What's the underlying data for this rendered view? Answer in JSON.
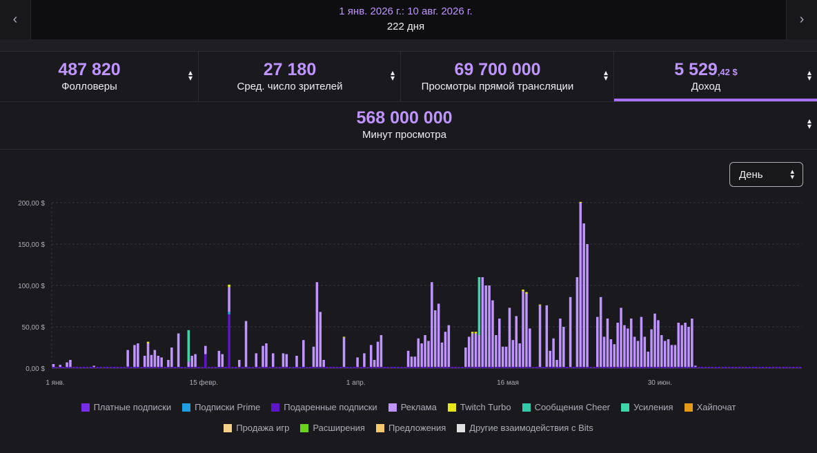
{
  "header": {
    "date_range": "1 янв. 2026 г.: 10 авг. 2026 г.",
    "days": "222 дня",
    "prev_icon": "chevron-left-icon",
    "next_icon": "chevron-right-icon"
  },
  "metrics": [
    {
      "value": "487 820",
      "label": "Фолловеры"
    },
    {
      "value": "27 180",
      "label": "Сред. число зрителей"
    },
    {
      "value": "69 700 000",
      "label": "Просмотры прямой трансляции"
    },
    {
      "value": "5 529",
      "value_small": ",42 $",
      "label": "Доход",
      "active": true
    }
  ],
  "metric_wide": {
    "value": "568 000 000",
    "label": "Минут просмотра"
  },
  "period": {
    "selected": "День"
  },
  "chart_data": {
    "type": "bar",
    "stacked": true,
    "yticks": [
      "0,00 $",
      "50,00 $",
      "100,00 $",
      "150,00 $",
      "200,00 $"
    ],
    "ylim": [
      0,
      200
    ],
    "grid": true,
    "xticks": [
      {
        "label": "1 янв.",
        "day": 0
      },
      {
        "label": "15 февр.",
        "day": 45
      },
      {
        "label": "1 апр.",
        "day": 90
      },
      {
        "label": "16 мая",
        "day": 135
      },
      {
        "label": "30 июн.",
        "day": 180
      }
    ],
    "series": [
      {
        "name": "Платные подписки",
        "color": "#772ce8"
      },
      {
        "name": "Подписки Prime",
        "color": "#1f9fe0"
      },
      {
        "name": "Подаренные подписки",
        "color": "#5c16c5"
      },
      {
        "name": "Реклама",
        "color": "#bf94ff"
      },
      {
        "name": "Twitch Turbo",
        "color": "#e6e619"
      },
      {
        "name": "Сообщения Cheer",
        "color": "#34c9a8"
      },
      {
        "name": "Усиления",
        "color": "#3dd6a8"
      },
      {
        "name": "Хайпочат",
        "color": "#e69a19"
      },
      {
        "name": "Продажа игр",
        "color": "#f5d08a"
      },
      {
        "name": "Расширения",
        "color": "#6bd21e"
      },
      {
        "name": "Предложения",
        "color": "#f5c96b"
      },
      {
        "name": "Другие взаимодействия с Bits",
        "color": "#e0e0e0"
      }
    ],
    "days_total": 222,
    "bars": [
      {
        "day": 0,
        "ads": 5
      },
      {
        "day": 2,
        "ads": 4
      },
      {
        "day": 4,
        "ads": 7
      },
      {
        "day": 5,
        "ads": 10
      },
      {
        "day": 12,
        "ads": 3
      },
      {
        "day": 22,
        "ads": 20,
        "gift": 2
      },
      {
        "day": 24,
        "ads": 28
      },
      {
        "day": 25,
        "ads": 30
      },
      {
        "day": 27,
        "ads": 15
      },
      {
        "day": 28,
        "ads": 30,
        "turbo": 2
      },
      {
        "day": 29,
        "ads": 16
      },
      {
        "day": 30,
        "ads": 22
      },
      {
        "day": 31,
        "ads": 15
      },
      {
        "day": 32,
        "ads": 13
      },
      {
        "day": 34,
        "ads": 10
      },
      {
        "day": 35,
        "ads": 25
      },
      {
        "day": 37,
        "ads": 42
      },
      {
        "day": 40,
        "ads": 8,
        "cheer": 38
      },
      {
        "day": 41,
        "ads": 15
      },
      {
        "day": 42,
        "ads": 17
      },
      {
        "day": 45,
        "ads": 10,
        "gift": 17
      },
      {
        "day": 49,
        "ads": 21
      },
      {
        "day": 50,
        "ads": 17
      },
      {
        "day": 52,
        "ads": 30,
        "gift": 65,
        "prime": 3,
        "turbo": 3
      },
      {
        "day": 55,
        "ads": 10
      },
      {
        "day": 57,
        "ads": 57
      },
      {
        "day": 60,
        "ads": 18
      },
      {
        "day": 62,
        "ads": 27
      },
      {
        "day": 63,
        "ads": 30
      },
      {
        "day": 65,
        "ads": 18
      },
      {
        "day": 68,
        "ads": 18
      },
      {
        "day": 69,
        "ads": 17
      },
      {
        "day": 72,
        "ads": 15
      },
      {
        "day": 74,
        "ads": 34
      },
      {
        "day": 77,
        "ads": 26
      },
      {
        "day": 78,
        "ads": 104
      },
      {
        "day": 79,
        "ads": 68
      },
      {
        "day": 80,
        "ads": 10
      },
      {
        "day": 86,
        "ads": 37,
        "turbo": 1
      },
      {
        "day": 90,
        "ads": 13
      },
      {
        "day": 92,
        "ads": 18
      },
      {
        "day": 94,
        "ads": 28
      },
      {
        "day": 95,
        "ads": 10
      },
      {
        "day": 96,
        "ads": 32
      },
      {
        "day": 97,
        "ads": 40
      },
      {
        "day": 105,
        "ads": 21
      },
      {
        "day": 106,
        "ads": 14
      },
      {
        "day": 107,
        "ads": 14
      },
      {
        "day": 108,
        "ads": 36
      },
      {
        "day": 109,
        "ads": 30
      },
      {
        "day": 110,
        "ads": 40
      },
      {
        "day": 111,
        "ads": 33
      },
      {
        "day": 112,
        "ads": 104
      },
      {
        "day": 113,
        "ads": 70
      },
      {
        "day": 114,
        "ads": 78
      },
      {
        "day": 115,
        "ads": 31
      },
      {
        "day": 116,
        "ads": 44
      },
      {
        "day": 117,
        "ads": 52
      },
      {
        "day": 122,
        "ads": 25
      },
      {
        "day": 123,
        "ads": 38
      },
      {
        "day": 124,
        "ads": 42,
        "turbo": 2
      },
      {
        "day": 125,
        "ads": 42,
        "turbo": 2
      },
      {
        "day": 126,
        "ads": 40,
        "cheer": 70
      },
      {
        "day": 127,
        "ads": 110
      },
      {
        "day": 128,
        "ads": 100
      },
      {
        "day": 129,
        "ads": 100
      },
      {
        "day": 130,
        "ads": 82
      },
      {
        "day": 131,
        "ads": 40
      },
      {
        "day": 132,
        "ads": 60
      },
      {
        "day": 133,
        "ads": 26
      },
      {
        "day": 134,
        "ads": 26
      },
      {
        "day": 135,
        "ads": 73
      },
      {
        "day": 136,
        "ads": 34
      },
      {
        "day": 137,
        "ads": 63
      },
      {
        "day": 138,
        "ads": 30
      },
      {
        "day": 139,
        "ads": 93,
        "turbo": 2
      },
      {
        "day": 140,
        "ads": 90,
        "turbo": 2
      },
      {
        "day": 141,
        "ads": 48
      },
      {
        "day": 144,
        "ads": 76,
        "turbo": 1
      },
      {
        "day": 146,
        "ads": 76
      },
      {
        "day": 147,
        "ads": 21
      },
      {
        "day": 148,
        "ads": 36
      },
      {
        "day": 149,
        "ads": 10
      },
      {
        "day": 150,
        "ads": 60
      },
      {
        "day": 151,
        "ads": 50
      },
      {
        "day": 153,
        "ads": 86
      },
      {
        "day": 155,
        "ads": 110
      },
      {
        "day": 156,
        "ads": 200,
        "turbo": 1
      },
      {
        "day": 157,
        "ads": 175
      },
      {
        "day": 158,
        "ads": 150
      },
      {
        "day": 161,
        "ads": 62
      },
      {
        "day": 162,
        "ads": 86
      },
      {
        "day": 163,
        "ads": 38
      },
      {
        "day": 164,
        "ads": 60
      },
      {
        "day": 165,
        "ads": 35
      },
      {
        "day": 166,
        "ads": 29
      },
      {
        "day": 167,
        "ads": 55
      },
      {
        "day": 168,
        "ads": 73
      },
      {
        "day": 169,
        "ads": 52
      },
      {
        "day": 170,
        "ads": 48
      },
      {
        "day": 171,
        "ads": 60
      },
      {
        "day": 172,
        "ads": 38
      },
      {
        "day": 173,
        "ads": 33
      },
      {
        "day": 174,
        "ads": 62
      },
      {
        "day": 175,
        "ads": 38
      },
      {
        "day": 176,
        "ads": 20
      },
      {
        "day": 177,
        "ads": 47
      },
      {
        "day": 178,
        "ads": 66
      },
      {
        "day": 179,
        "ads": 58
      },
      {
        "day": 180,
        "ads": 40
      },
      {
        "day": 181,
        "ads": 33
      },
      {
        "day": 182,
        "ads": 35
      },
      {
        "day": 183,
        "ads": 28
      },
      {
        "day": 184,
        "ads": 28
      },
      {
        "day": 185,
        "ads": 55
      },
      {
        "day": 186,
        "ads": 52
      },
      {
        "day": 187,
        "ads": 55
      },
      {
        "day": 188,
        "ads": 50
      },
      {
        "day": 189,
        "ads": 60
      },
      {
        "day": 190,
        "ads": 3
      }
    ]
  },
  "legend": [
    {
      "label": "Платные подписки",
      "color": "#772ce8"
    },
    {
      "label": "Подписки Prime",
      "color": "#1f9fe0"
    },
    {
      "label": "Подаренные подписки",
      "color": "#5c16c5"
    },
    {
      "label": "Реклама",
      "color": "#bf94ff"
    },
    {
      "label": "Twitch Turbo",
      "color": "#e6e619"
    },
    {
      "label": "Сообщения Cheer",
      "color": "#34c9a8"
    },
    {
      "label": "Усиления",
      "color": "#3dd6a8"
    },
    {
      "label": "Хайпочат",
      "color": "#e69a19"
    },
    {
      "label": "Продажа игр",
      "color": "#f5d08a"
    },
    {
      "label": "Расширения",
      "color": "#6bd21e"
    },
    {
      "label": "Предложения",
      "color": "#f5c96b"
    },
    {
      "label": "Другие взаимодействия с Bits",
      "color": "#e0e0e0"
    }
  ]
}
